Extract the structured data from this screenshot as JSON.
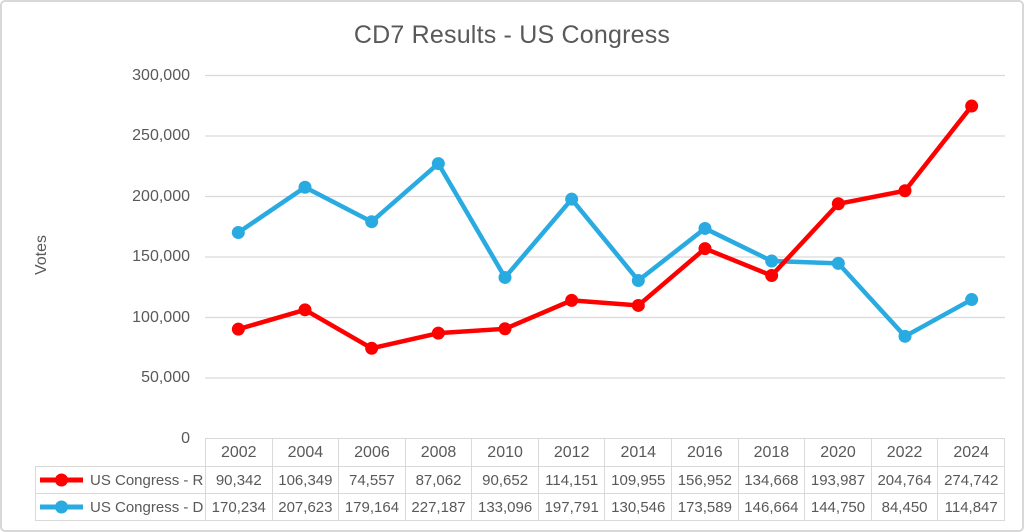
{
  "colors": {
    "grid": "#D9D9D9",
    "table_border": "#D9D9D9",
    "text": "#595959",
    "frame_border": "#D8D8D8",
    "background": "#FFFFFF",
    "series_r": "#FF0000",
    "series_d": "#29ABE2"
  },
  "chart_data": {
    "type": "line",
    "title": "CD7 Results - US Congress",
    "xlabel": "",
    "ylabel": "Votes",
    "ylim": [
      0,
      300000
    ],
    "grid": true,
    "legend_position": "table-left",
    "yticks": [
      {
        "value": 0,
        "label": "0"
      },
      {
        "value": 50000,
        "label": "50,000"
      },
      {
        "value": 100000,
        "label": "100,000"
      },
      {
        "value": 150000,
        "label": "150,000"
      },
      {
        "value": 200000,
        "label": "200,000"
      },
      {
        "value": 250000,
        "label": "250,000"
      },
      {
        "value": 300000,
        "label": "300,000"
      }
    ],
    "categories": [
      "2002",
      "2004",
      "2006",
      "2008",
      "2010",
      "2012",
      "2014",
      "2016",
      "2018",
      "2020",
      "2022",
      "2024"
    ],
    "series": [
      {
        "name": "US Congress - R",
        "color": "#FF0000",
        "values": [
          90342,
          106349,
          74557,
          87062,
          90652,
          114151,
          109955,
          156952,
          134668,
          193987,
          204764,
          274742
        ],
        "display_values": [
          "90,342",
          "106,349",
          "74,557",
          "87,062",
          "90,652",
          "114,151",
          "109,955",
          "156,952",
          "134,668",
          "193,987",
          "204,764",
          "274,742"
        ]
      },
      {
        "name": "US Congress - D",
        "color": "#29ABE2",
        "values": [
          170234,
          207623,
          179164,
          227187,
          133096,
          197791,
          130546,
          173589,
          146664,
          144750,
          84450,
          114847
        ],
        "display_values": [
          "170,234",
          "207,623",
          "179,164",
          "227,187",
          "133,096",
          "197,791",
          "130,546",
          "173,589",
          "146,664",
          "144,750",
          "84,450",
          "114,847"
        ]
      }
    ]
  }
}
